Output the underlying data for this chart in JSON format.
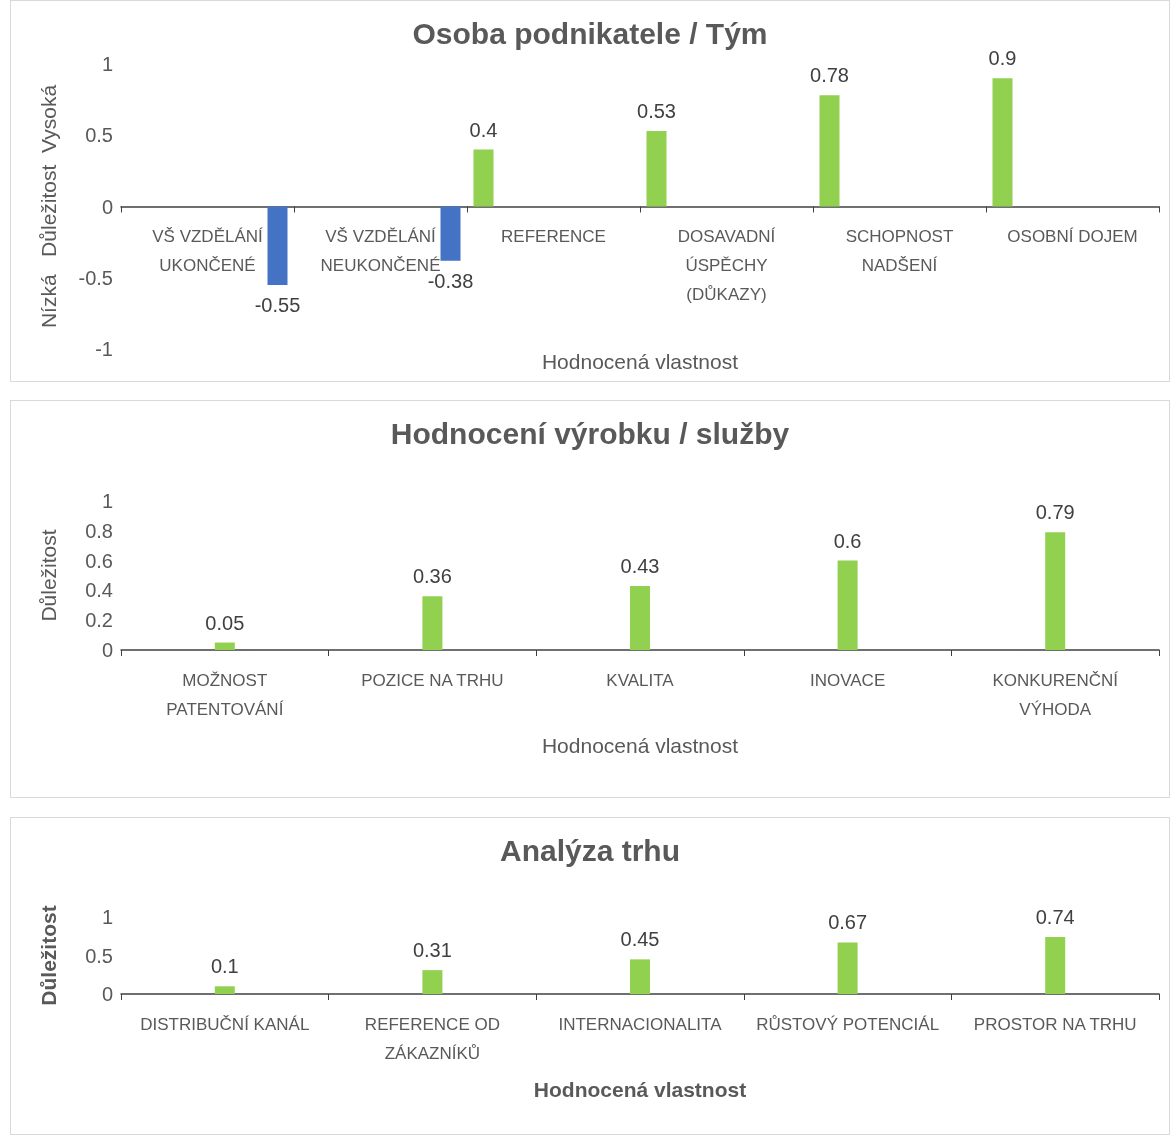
{
  "chart_data": [
    {
      "type": "bar",
      "title": "Osoba podnikatele / Tým",
      "xlabel": "Hodnocená vlastnost",
      "ylabel": "Nízká   Důležitost  Vysoká",
      "categories": [
        "VŠ VZDĚLÁNÍ UKONČENÉ",
        "VŠ VZDĚLÁNÍ NEUKONČENÉ",
        "REFERENCE",
        "DOSAVADNÍ ÚSPĚCHY (DŮKAZY)",
        "SCHOPNOST NADŠENÍ",
        "OSOBNÍ DOJEM"
      ],
      "series": [
        {
          "color": "#92d050",
          "values": [
            null,
            null,
            0.4,
            0.53,
            0.78,
            0.9
          ]
        },
        {
          "color": "#4472c4",
          "values": [
            -0.55,
            -0.38,
            null,
            null,
            null,
            null
          ]
        }
      ],
      "ylim": [
        -1,
        1
      ],
      "yticks": [
        -1,
        -0.5,
        0,
        0.5,
        1
      ],
      "data_labels": true,
      "grid": false
    },
    {
      "type": "bar",
      "title": "Hodnocení výrobku / služby",
      "xlabel": "Hodnocená vlastnost",
      "ylabel": "Důležitost",
      "categories": [
        "MOŽNOST PATENTOVÁNÍ",
        "POZICE NA TRHU",
        "KVALITA",
        "INOVACE",
        "KONKURENČNÍ VÝHODA"
      ],
      "series": [
        {
          "color": "#92d050",
          "values": [
            0.05,
            0.36,
            0.43,
            0.6,
            0.79
          ]
        }
      ],
      "ylim": [
        0,
        1
      ],
      "yticks": [
        0,
        0.2,
        0.4,
        0.6,
        0.8,
        1
      ],
      "data_labels": true,
      "grid": false
    },
    {
      "type": "bar",
      "title": "Analýza trhu",
      "xlabel": "Hodnocená vlastnost",
      "ylabel": "Důležitost",
      "categories": [
        "DISTRIBUČNÍ KANÁL",
        "REFERENCE OD ZÁKAZNÍKŮ",
        "INTERNACIONALITA",
        "RŮSTOVÝ POTENCIÁL",
        "PROSTOR NA TRHU"
      ],
      "series": [
        {
          "color": "#92d050",
          "values": [
            0.1,
            0.31,
            0.45,
            0.67,
            0.74
          ]
        }
      ],
      "ylim": [
        0,
        1
      ],
      "yticks": [
        0,
        0.5,
        1
      ],
      "data_labels": true,
      "grid": false
    }
  ]
}
